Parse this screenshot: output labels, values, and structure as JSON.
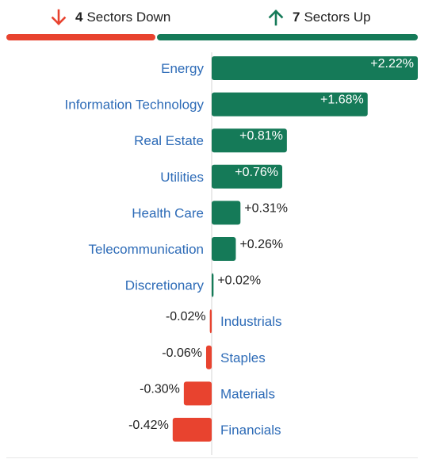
{
  "summary": {
    "down_count": "4",
    "down_label": "Sectors Down",
    "up_count": "7",
    "up_label": "Sectors Up",
    "down_color": "#e8432f",
    "up_color": "#157a58",
    "down_icon": "arrow-down-icon",
    "up_icon": "arrow-up-icon",
    "down_share": 0.3636,
    "up_share": 0.6364
  },
  "chart_data": {
    "type": "bar",
    "orientation": "horizontal-diverging",
    "categories": [
      "Energy",
      "Information Technology",
      "Real Estate",
      "Utilities",
      "Health Care",
      "Telecommunication",
      "Discretionary",
      "Industrials",
      "Staples",
      "Materials",
      "Financials"
    ],
    "values": [
      2.22,
      1.68,
      0.81,
      0.76,
      0.31,
      0.26,
      0.02,
      -0.02,
      -0.06,
      -0.3,
      -0.42
    ],
    "value_labels": [
      "+2.22%",
      "+1.68%",
      "+0.81%",
      "+0.76%",
      "+0.31%",
      "+0.26%",
      "+0.02%",
      "-0.02%",
      "-0.06%",
      "-0.30%",
      "-0.42%"
    ],
    "unit": "%",
    "positive_color": "#157a58",
    "negative_color": "#e8432f",
    "category_label_color": "#2d6bb7",
    "xlim": [
      -0.79,
      2.22
    ]
  }
}
